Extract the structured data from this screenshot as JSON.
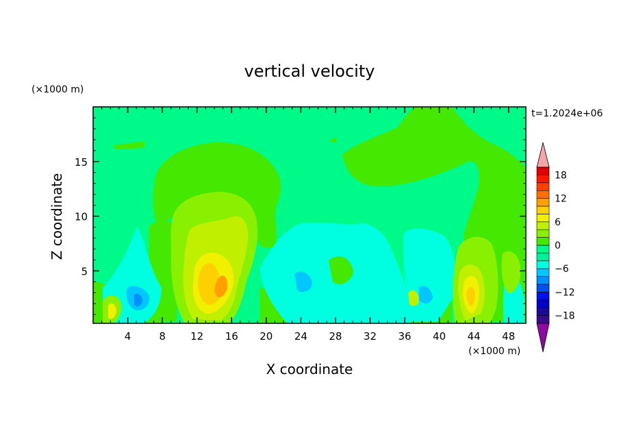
{
  "chart_data": {
    "type": "contour",
    "title": "vertical velocity",
    "xlabel": "X coordinate",
    "ylabel": "Z coordinate",
    "x_unit": "(×1000 m)",
    "y_unit": "(×1000 m)",
    "time_label": "t=1.2024e+06",
    "xlim": [
      0,
      50
    ],
    "ylim": [
      0.2,
      20
    ],
    "x_ticks": [
      4,
      8,
      12,
      16,
      20,
      24,
      28,
      32,
      36,
      40,
      44,
      48
    ],
    "y_ticks": [
      5,
      10,
      15
    ],
    "colorbar": {
      "levels": [
        -20,
        -18,
        -16,
        -14,
        -12,
        -10,
        -8,
        -6,
        -4,
        -2,
        0,
        2,
        4,
        6,
        8,
        10,
        12,
        14,
        16,
        18,
        20
      ],
      "tick_labels": [
        "18",
        "12",
        "6",
        "0",
        "−6",
        "−12",
        "−18"
      ],
      "tick_values": [
        18,
        12,
        6,
        0,
        -6,
        -12,
        -18
      ],
      "colors": [
        "#3a0a8c",
        "#1a0a9a",
        "#0000c8",
        "#0010e8",
        "#0050f0",
        "#0090ff",
        "#00c8ff",
        "#00ffe0",
        "#00f0a0",
        "#00fa8a",
        "#44e800",
        "#88f000",
        "#c0f000",
        "#f0f000",
        "#ffd000",
        "#ffa000",
        "#ff7000",
        "#ff4000",
        "#ff1800",
        "#e00000"
      ],
      "over_color": "#f4a6a6",
      "under_color": "#8c0aa0"
    },
    "background_level_color": "#00fa8a",
    "features": [
      {
        "kind": "updraft",
        "x": 14.5,
        "z": 4,
        "peak": 8
      },
      {
        "kind": "updraft",
        "x": 44,
        "z": 3,
        "peak": 8
      },
      {
        "kind": "updraft",
        "x": 2.5,
        "z": 1.5,
        "peak": 6
      },
      {
        "kind": "downdraft",
        "x": 5.5,
        "z": 2.5,
        "peak": -8
      },
      {
        "kind": "downdraft",
        "x": 28,
        "z": 4.5,
        "peak": -4
      }
    ]
  }
}
